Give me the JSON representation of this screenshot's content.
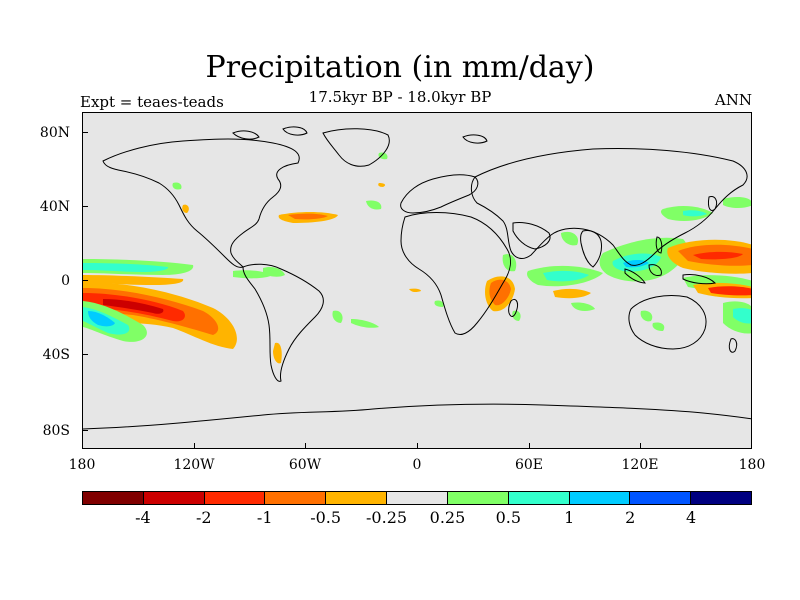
{
  "title": "Precipitation (in mm/day)",
  "subtitle": "17.5kyr BP - 18.0kyr BP",
  "experiment_label": "Expt = teaes-teads",
  "season_label": "ANN",
  "lat_axis": [
    "80N",
    "40N",
    "0",
    "40S",
    "80S"
  ],
  "lon_axis": [
    "180",
    "120W",
    "60W",
    "0",
    "60E",
    "120E",
    "180"
  ],
  "colorbar": {
    "colors": [
      "#800000",
      "#cc0000",
      "#ff2a00",
      "#ff7000",
      "#ffb400",
      "#e6e6e6",
      "#80ff66",
      "#33ffcc",
      "#00ccff",
      "#0055ff",
      "#000080"
    ],
    "labels": [
      "-4",
      "-2",
      "-1",
      "-0.5",
      "-0.25",
      "0.25",
      "0.5",
      "1",
      "2",
      "4"
    ]
  },
  "colors": {
    "land_outline": "#000000",
    "background": "#e6e6e6"
  }
}
